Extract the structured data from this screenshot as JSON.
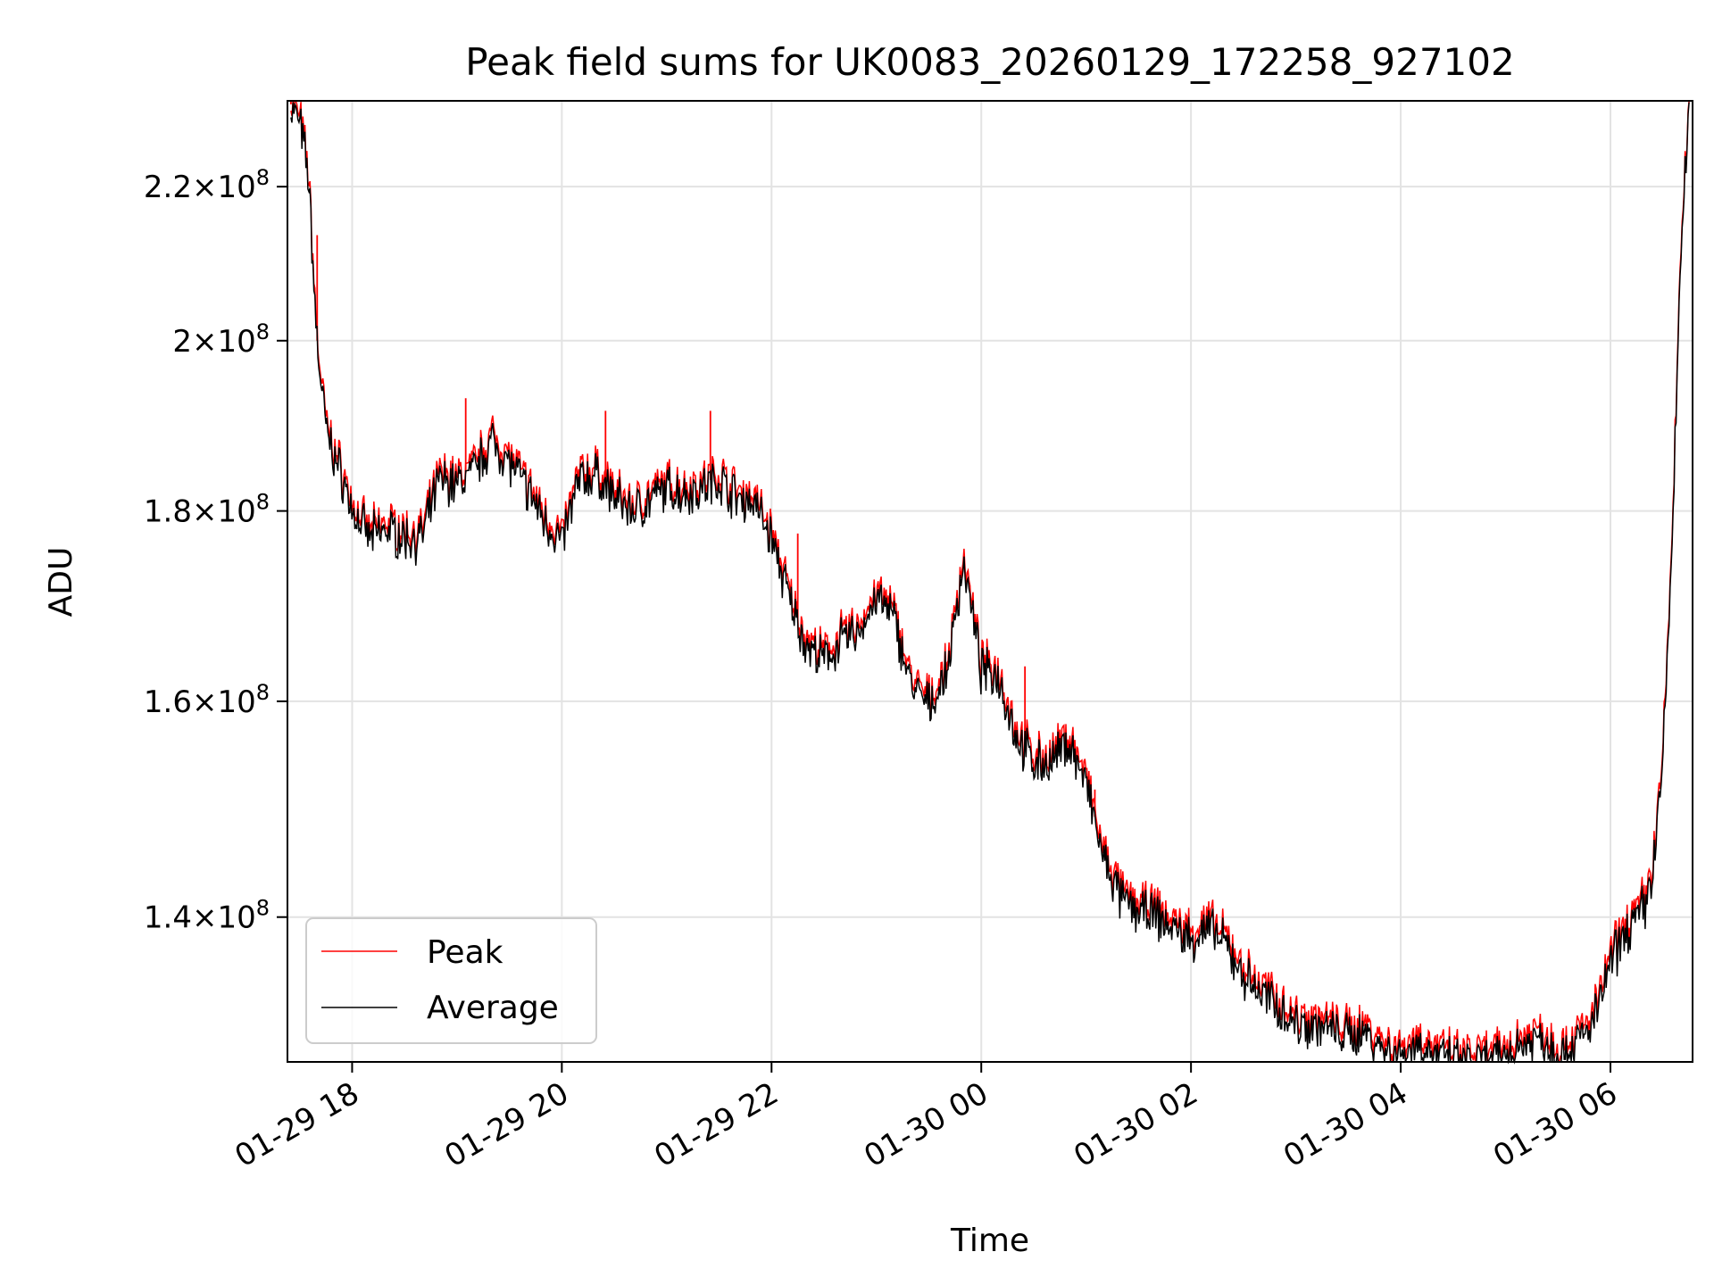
{
  "chart_data": {
    "type": "line",
    "title": "Peak field sums for UK0083_20260129_172258_927102",
    "xlabel": "Time",
    "ylabel": "ADU",
    "y_scale": "log",
    "grid": true,
    "legend_position": "lower-left",
    "x_range": [
      "2026-01-29 17:23",
      "2026-01-30 06:47"
    ],
    "ylim": [
      128000000,
      232000000
    ],
    "x_ticks": [
      {
        "value": "2026-01-29 18:00",
        "label": "01-29 18"
      },
      {
        "value": "2026-01-29 20:00",
        "label": "01-29 20"
      },
      {
        "value": "2026-01-29 22:00",
        "label": "01-29 22"
      },
      {
        "value": "2026-01-30 00:00",
        "label": "01-30 00"
      },
      {
        "value": "2026-01-30 02:00",
        "label": "01-30 02"
      },
      {
        "value": "2026-01-30 04:00",
        "label": "01-30 04"
      },
      {
        "value": "2026-01-30 06:00",
        "label": "01-30 06"
      }
    ],
    "y_ticks": [
      {
        "value": 140000000,
        "mantissa": "1.4",
        "exponent": "8"
      },
      {
        "value": 160000000,
        "mantissa": "1.6",
        "exponent": "8"
      },
      {
        "value": 180000000,
        "mantissa": "1.8",
        "exponent": "8"
      },
      {
        "value": 200000000,
        "mantissa": "2",
        "exponent": "8"
      },
      {
        "value": 220000000,
        "mantissa": "2.2",
        "exponent": "8"
      }
    ],
    "series": [
      {
        "name": "Peak",
        "color": "#ff0000",
        "x": [
          "2026-01-29 17:25",
          "2026-01-29 17:30",
          "2026-01-29 17:35",
          "2026-01-29 17:40",
          "2026-01-29 17:45",
          "2026-01-29 17:50",
          "2026-01-29 17:55",
          "2026-01-29 18:00",
          "2026-01-29 18:10",
          "2026-01-29 18:20",
          "2026-01-29 18:30",
          "2026-01-29 18:40",
          "2026-01-29 18:50",
          "2026-01-29 19:00",
          "2026-01-29 19:10",
          "2026-01-29 19:20",
          "2026-01-29 19:30",
          "2026-01-29 19:40",
          "2026-01-29 19:50",
          "2026-01-29 20:00",
          "2026-01-29 20:10",
          "2026-01-29 20:20",
          "2026-01-29 20:30",
          "2026-01-29 20:40",
          "2026-01-29 20:50",
          "2026-01-29 21:00",
          "2026-01-29 21:10",
          "2026-01-29 21:20",
          "2026-01-29 21:30",
          "2026-01-29 21:40",
          "2026-01-29 21:50",
          "2026-01-29 22:00",
          "2026-01-29 22:10",
          "2026-01-29 22:20",
          "2026-01-29 22:30",
          "2026-01-29 22:40",
          "2026-01-29 22:50",
          "2026-01-29 23:00",
          "2026-01-29 23:10",
          "2026-01-29 23:20",
          "2026-01-29 23:30",
          "2026-01-29 23:40",
          "2026-01-29 23:50",
          "2026-01-30 00:00",
          "2026-01-30 00:10",
          "2026-01-30 00:20",
          "2026-01-30 00:30",
          "2026-01-30 00:40",
          "2026-01-30 00:50",
          "2026-01-30 01:00",
          "2026-01-30 01:10",
          "2026-01-30 01:20",
          "2026-01-30 01:30",
          "2026-01-30 01:40",
          "2026-01-30 01:50",
          "2026-01-30 02:00",
          "2026-01-30 02:10",
          "2026-01-30 02:20",
          "2026-01-30 02:30",
          "2026-01-30 02:40",
          "2026-01-30 02:50",
          "2026-01-30 03:00",
          "2026-01-30 03:10",
          "2026-01-30 03:20",
          "2026-01-30 03:30",
          "2026-01-30 03:40",
          "2026-01-30 03:50",
          "2026-01-30 04:00",
          "2026-01-30 04:10",
          "2026-01-30 04:20",
          "2026-01-30 04:30",
          "2026-01-30 04:40",
          "2026-01-30 04:50",
          "2026-01-30 05:00",
          "2026-01-30 05:10",
          "2026-01-30 05:20",
          "2026-01-30 05:30",
          "2026-01-30 05:40",
          "2026-01-30 05:50",
          "2026-01-30 06:00",
          "2026-01-30 06:10",
          "2026-01-30 06:20",
          "2026-01-30 06:25",
          "2026-01-30 06:30",
          "2026-01-30 06:35",
          "2026-01-30 06:40",
          "2026-01-30 06:45"
        ],
        "values": [
          231500000,
          229500000,
          222000000,
          200000000,
          190000000,
          186500000,
          184000000,
          180500000,
          177500000,
          178500000,
          177500000,
          177500000,
          184000000,
          183500000,
          185000000,
          188500000,
          186000000,
          183000000,
          179500000,
          177000000,
          184000000,
          184500000,
          182000000,
          180500000,
          181500000,
          183000000,
          182500000,
          183000000,
          184000000,
          182000000,
          181500000,
          177500000,
          171000000,
          166000000,
          164500000,
          166500000,
          167500000,
          171000000,
          169000000,
          162000000,
          160000000,
          163000000,
          175000000,
          163500000,
          163000000,
          157000000,
          154500000,
          154500000,
          156500000,
          152500000,
          145500000,
          142000000,
          141000000,
          140500000,
          139500000,
          138500000,
          139500000,
          138000000,
          135500000,
          134000000,
          133000000,
          131500000,
          131500000,
          131000000,
          130500000,
          131000000,
          129500000,
          129000000,
          130000000,
          129000000,
          128500000,
          128500000,
          128500000,
          129000000,
          130000000,
          130500000,
          129000000,
          130000000,
          131500000,
          136500000,
          139500000,
          141500000,
          145500000,
          155000000,
          175000000,
          210000000,
          231000000
        ],
        "spikes": [
          {
            "x": "2026-01-29 17:25",
            "value": 232000000
          },
          {
            "x": "2026-01-29 17:40",
            "value": 213500000
          },
          {
            "x": "2026-01-29 19:05",
            "value": 193000000
          },
          {
            "x": "2026-01-29 20:25",
            "value": 191500000
          },
          {
            "x": "2026-01-29 21:25",
            "value": 191500000
          },
          {
            "x": "2026-01-29 22:15",
            "value": 177500000
          },
          {
            "x": "2026-01-30 00:25",
            "value": 163500000
          },
          {
            "x": "2026-01-30 01:05",
            "value": 151500000
          }
        ]
      },
      {
        "name": "Average",
        "color": "#000000",
        "x": [
          "2026-01-29 17:25",
          "2026-01-29 17:30",
          "2026-01-29 17:35",
          "2026-01-29 17:40",
          "2026-01-29 17:45",
          "2026-01-29 17:50",
          "2026-01-29 17:55",
          "2026-01-29 18:00",
          "2026-01-29 18:10",
          "2026-01-29 18:20",
          "2026-01-29 18:30",
          "2026-01-29 18:40",
          "2026-01-29 18:50",
          "2026-01-29 19:00",
          "2026-01-29 19:10",
          "2026-01-29 19:20",
          "2026-01-29 19:30",
          "2026-01-29 19:40",
          "2026-01-29 19:50",
          "2026-01-29 20:00",
          "2026-01-29 20:10",
          "2026-01-29 20:20",
          "2026-01-29 20:30",
          "2026-01-29 20:40",
          "2026-01-29 20:50",
          "2026-01-29 21:00",
          "2026-01-29 21:10",
          "2026-01-29 21:20",
          "2026-01-29 21:30",
          "2026-01-29 21:40",
          "2026-01-29 21:50",
          "2026-01-29 22:00",
          "2026-01-29 22:10",
          "2026-01-29 22:20",
          "2026-01-29 22:30",
          "2026-01-29 22:40",
          "2026-01-29 22:50",
          "2026-01-29 23:00",
          "2026-01-29 23:10",
          "2026-01-29 23:20",
          "2026-01-29 23:30",
          "2026-01-29 23:40",
          "2026-01-29 23:50",
          "2026-01-30 00:00",
          "2026-01-30 00:10",
          "2026-01-30 00:20",
          "2026-01-30 00:30",
          "2026-01-30 00:40",
          "2026-01-30 00:50",
          "2026-01-30 01:00",
          "2026-01-30 01:10",
          "2026-01-30 01:20",
          "2026-01-30 01:30",
          "2026-01-30 01:40",
          "2026-01-30 01:50",
          "2026-01-30 02:00",
          "2026-01-30 02:10",
          "2026-01-30 02:20",
          "2026-01-30 02:30",
          "2026-01-30 02:40",
          "2026-01-30 02:50",
          "2026-01-30 03:00",
          "2026-01-30 03:10",
          "2026-01-30 03:20",
          "2026-01-30 03:30",
          "2026-01-30 03:40",
          "2026-01-30 03:50",
          "2026-01-30 04:00",
          "2026-01-30 04:10",
          "2026-01-30 04:20",
          "2026-01-30 04:30",
          "2026-01-30 04:40",
          "2026-01-30 04:50",
          "2026-01-30 05:00",
          "2026-01-30 05:10",
          "2026-01-30 05:20",
          "2026-01-30 05:30",
          "2026-01-30 05:40",
          "2026-01-30 05:50",
          "2026-01-30 06:00",
          "2026-01-30 06:10",
          "2026-01-30 06:20",
          "2026-01-30 06:25",
          "2026-01-30 06:30",
          "2026-01-30 06:35",
          "2026-01-30 06:40",
          "2026-01-30 06:45"
        ],
        "values": [
          231000000,
          229000000,
          221500000,
          199500000,
          189500000,
          186000000,
          183500000,
          180000000,
          177000000,
          178000000,
          177000000,
          177000000,
          183500000,
          183000000,
          184500000,
          188000000,
          185500000,
          182500000,
          179000000,
          176500000,
          183500000,
          184000000,
          181500000,
          180000000,
          181000000,
          182500000,
          182000000,
          182500000,
          183500000,
          181500000,
          181000000,
          177000000,
          170500000,
          165500000,
          164000000,
          166000000,
          167000000,
          170500000,
          168500000,
          161500000,
          159500000,
          162500000,
          174500000,
          163000000,
          162500000,
          156500000,
          154000000,
          154000000,
          156000000,
          152000000,
          145000000,
          141500000,
          140500000,
          140000000,
          139000000,
          138000000,
          139000000,
          137500000,
          135000000,
          133500000,
          132500000,
          131000000,
          131000000,
          130500000,
          130000000,
          130500000,
          129000000,
          128500000,
          129500000,
          128500000,
          128000000,
          128000000,
          128000000,
          128500000,
          129500000,
          130000000,
          128500000,
          129500000,
          131000000,
          136000000,
          139000000,
          141000000,
          145000000,
          154500000,
          174500000,
          209500000,
          231000000
        ]
      }
    ]
  }
}
